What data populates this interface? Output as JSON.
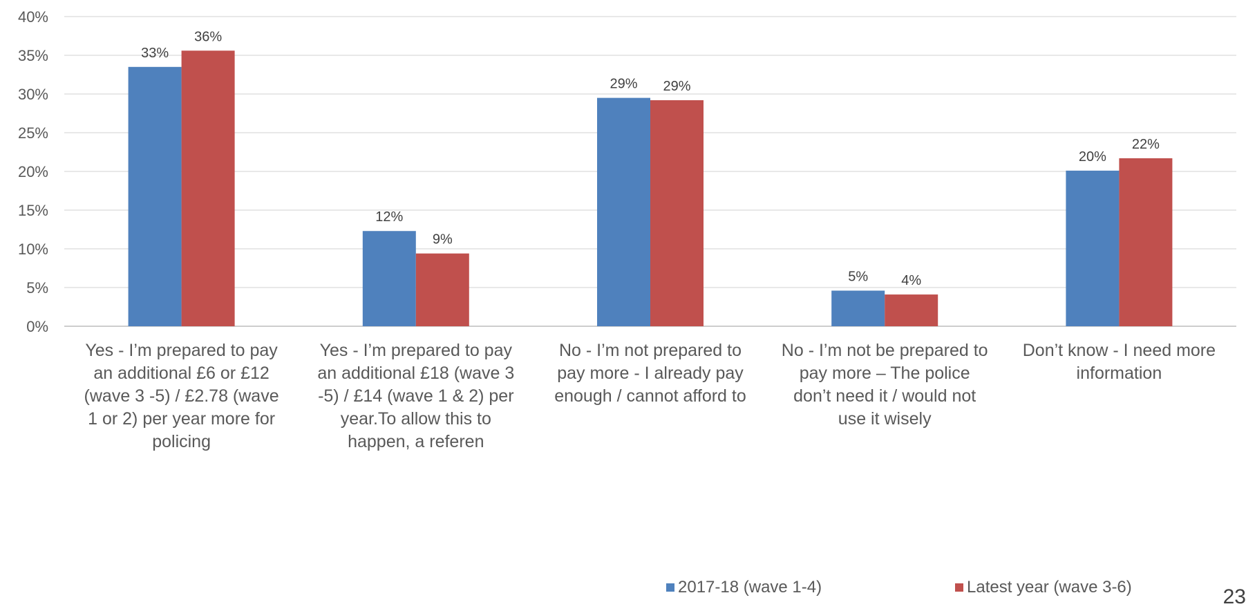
{
  "chart_data": {
    "type": "bar",
    "categories": [
      "Yes - I’m prepared to pay an additional £6 or £12 (wave 3 -5) / £2.78 (wave 1 or 2) per year more for policing",
      "Yes - I’m prepared to pay an additional £18 (wave 3 -5) / £14 (wave 1 & 2) per year.To allow this to happen, a referen",
      "No - I’m not prepared to pay more - I already pay enough / cannot afford to",
      "No - I’m not be prepared to pay more – The police don’t need it / would not use it wisely",
      "Don’t know - I need more information"
    ],
    "series": [
      {
        "name": "2017-18 (wave 1-4)",
        "color": "#4F81BD",
        "values": [
          33.5,
          12.3,
          29.5,
          4.6,
          20.1
        ],
        "labels": [
          "33%",
          "12%",
          "29%",
          "5%",
          "20%"
        ]
      },
      {
        "name": "Latest year (wave 3-6)",
        "color": "#C0504D",
        "values": [
          35.6,
          9.4,
          29.2,
          4.1,
          21.7
        ],
        "labels": [
          "36%",
          "9%",
          "29%",
          "4%",
          "22%"
        ]
      }
    ],
    "y_ticks": [
      "0%",
      "5%",
      "10%",
      "15%",
      "20%",
      "25%",
      "30%",
      "35%",
      "40%"
    ],
    "ylim": [
      0,
      40
    ],
    "grid": true,
    "legend_position": "bottom-right",
    "title": "",
    "xlabel": "",
    "ylabel": ""
  },
  "page_number": "23"
}
